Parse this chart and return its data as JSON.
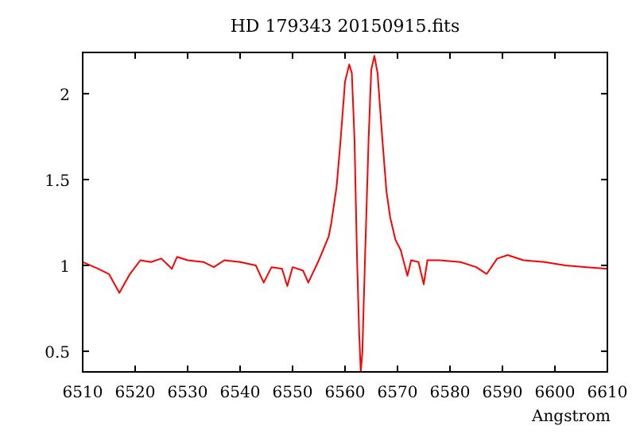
{
  "chart_data": {
    "type": "line",
    "title": "HD 179343 20150915.fits",
    "xlabel": "Angstrom",
    "xlim": [
      6510,
      6610
    ],
    "ylim": [
      0.38,
      2.24
    ],
    "xticks": [
      6510,
      6520,
      6530,
      6540,
      6550,
      6560,
      6570,
      6580,
      6590,
      6600,
      6610
    ],
    "yticks": [
      0.5,
      1,
      1.5,
      2
    ],
    "grid": false,
    "marker": "none",
    "line_style": "solid",
    "series": [
      {
        "color": "#ff0000",
        "x": [
          6510,
          6513,
          6515,
          6517,
          6519,
          6521,
          6523,
          6525,
          6527,
          6528,
          6530,
          6533,
          6535,
          6537,
          6540,
          6543,
          6544.5,
          6546,
          6548,
          6549,
          6550,
          6552,
          6553,
          6555,
          6556.9,
          6557.4,
          6558.4,
          6559.1,
          6560.0,
          6560.8,
          6561.3,
          6561.8,
          6562.3,
          6562.7,
          6563.0,
          6563.3,
          6563.8,
          6564.5,
          6565.0,
          6565.6,
          6566.2,
          6567.1,
          6567.9,
          6568.6,
          6569.6,
          6570.6,
          6571.9,
          6572.6,
          6574,
          6575,
          6575.7,
          6578,
          6582,
          6585,
          6587,
          6589,
          6591,
          6594,
          6598,
          6602,
          6606,
          6610
        ],
        "values": [
          1.02,
          0.98,
          0.95,
          0.84,
          0.95,
          1.03,
          1.02,
          1.04,
          0.98,
          1.05,
          1.03,
          1.02,
          0.99,
          1.03,
          1.02,
          1.0,
          0.9,
          0.99,
          0.98,
          0.88,
          0.99,
          0.97,
          0.9,
          1.03,
          1.17,
          1.25,
          1.46,
          1.71,
          2.07,
          2.17,
          2.12,
          1.74,
          1.03,
          0.6,
          0.38,
          0.49,
          1.03,
          1.74,
          2.14,
          2.22,
          2.12,
          1.74,
          1.43,
          1.28,
          1.15,
          1.09,
          0.94,
          1.03,
          1.02,
          0.89,
          1.03,
          1.03,
          1.02,
          0.99,
          0.95,
          1.04,
          1.06,
          1.03,
          1.02,
          1.0,
          0.99,
          0.98
        ]
      }
    ]
  }
}
